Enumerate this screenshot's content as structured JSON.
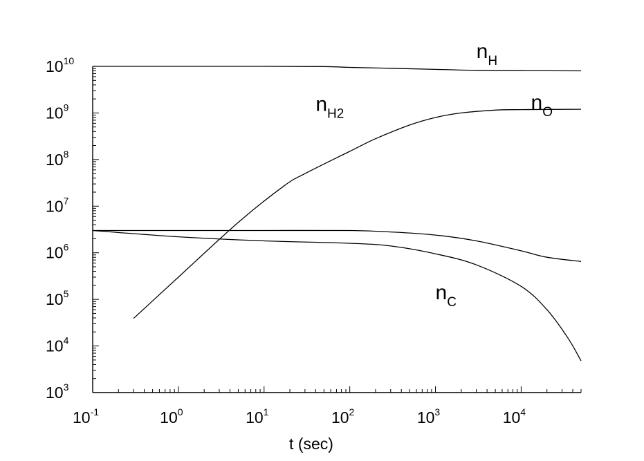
{
  "chart_data": {
    "type": "line",
    "title": "",
    "xlabel": "t (sec)",
    "ylabel": "",
    "x_scale": "log",
    "y_scale": "log",
    "xlim": [
      0.1,
      50000
    ],
    "ylim": [
      1000,
      10000000000
    ],
    "x_ticks": [
      {
        "value": 0.1,
        "base": "10",
        "exp": "-1"
      },
      {
        "value": 1,
        "base": "10",
        "exp": "0"
      },
      {
        "value": 10,
        "base": "10",
        "exp": "1"
      },
      {
        "value": 100,
        "base": "10",
        "exp": "2"
      },
      {
        "value": 1000,
        "base": "10",
        "exp": "3"
      },
      {
        "value": 10000,
        "base": "10",
        "exp": "4"
      }
    ],
    "y_ticks": [
      {
        "value": 1000,
        "base": "10",
        "exp": "3"
      },
      {
        "value": 10000,
        "base": "10",
        "exp": "4"
      },
      {
        "value": 100000,
        "base": "10",
        "exp": "5"
      },
      {
        "value": 1000000,
        "base": "10",
        "exp": "6"
      },
      {
        "value": 10000000,
        "base": "10",
        "exp": "7"
      },
      {
        "value": 100000000,
        "base": "10",
        "exp": "8"
      },
      {
        "value": 1000000000,
        "base": "10",
        "exp": "9"
      },
      {
        "value": 10000000000,
        "base": "10",
        "exp": "10"
      }
    ],
    "series": [
      {
        "name": "nH",
        "label_main": "n",
        "label_sub": "H",
        "label_at": {
          "x": 3000,
          "y": 15000000000
        },
        "points": [
          [
            0.1,
            10000000000.0
          ],
          [
            1,
            10000000000.0
          ],
          [
            10,
            10000000000.0
          ],
          [
            50,
            9900000000.0
          ],
          [
            100,
            9500000000.0
          ],
          [
            300,
            9100000000.0
          ],
          [
            1000,
            8600000000.0
          ],
          [
            3000,
            8200000000.0
          ],
          [
            10000,
            8100000000.0
          ],
          [
            50000,
            8000000000.0
          ]
        ]
      },
      {
        "name": "nH2",
        "label_main": "n",
        "label_sub": "H2",
        "label_at": {
          "x": 40,
          "y": 1100000000
        },
        "points": [
          [
            0.3,
            39000.0
          ],
          [
            1,
            300000.0
          ],
          [
            5,
            4500000.0
          ],
          [
            17,
            27000000.0
          ],
          [
            30,
            50000000.0
          ],
          [
            100,
            150000000.0
          ],
          [
            200,
            280000000.0
          ],
          [
            500,
            550000000.0
          ],
          [
            1000,
            800000000.0
          ],
          [
            2000,
            1000000000.0
          ],
          [
            5000,
            1150000000.0
          ],
          [
            10000,
            1180000000.0
          ],
          [
            50000,
            1200000000.0
          ]
        ]
      },
      {
        "name": "nO",
        "label_main": "n",
        "label_sub": "O",
        "label_at": {
          "x": 13000,
          "y": 1200000000
        },
        "points": [
          [
            0.1,
            3000000.0
          ],
          [
            1,
            3000000.0
          ],
          [
            10,
            3000000.0
          ],
          [
            100,
            3000000.0
          ],
          [
            300,
            2800000.0
          ],
          [
            1000,
            2400000.0
          ],
          [
            3000,
            1800000.0
          ],
          [
            10000,
            1100000.0
          ],
          [
            20000,
            800000.0
          ],
          [
            50000,
            650000.0
          ]
        ]
      },
      {
        "name": "nC",
        "label_main": "n",
        "label_sub": "C",
        "label_at": {
          "x": 1000,
          "y": 100000
        },
        "points": [
          [
            0.1,
            3000000.0
          ],
          [
            1,
            2200000.0
          ],
          [
            10,
            1800000.0
          ],
          [
            100,
            1600000.0
          ],
          [
            300,
            1400000.0
          ],
          [
            1000,
            950000.0
          ],
          [
            3000,
            550000.0
          ],
          [
            10000,
            190000.0
          ],
          [
            20000,
            60000.0
          ],
          [
            35000,
            15000.0
          ],
          [
            50000,
            4800.0
          ]
        ]
      }
    ]
  }
}
